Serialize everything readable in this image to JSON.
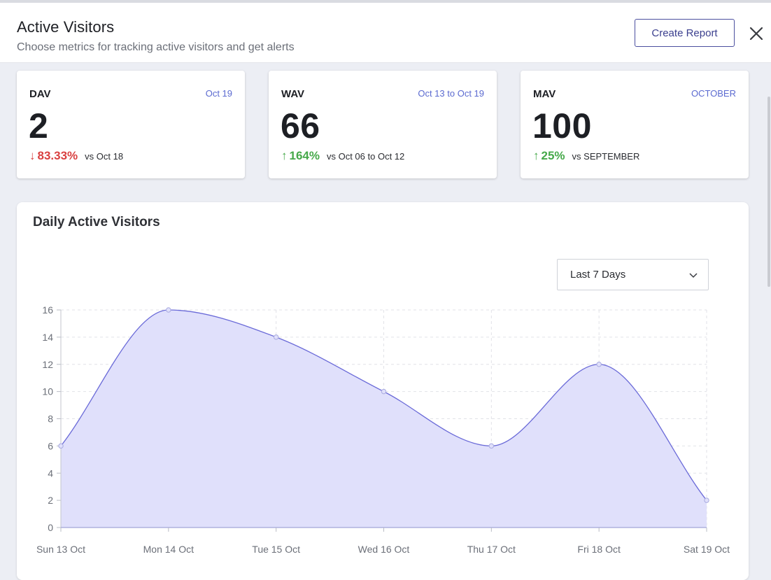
{
  "header": {
    "title": "Active Visitors",
    "subtitle": "Choose metrics for tracking active visitors and get alerts",
    "create_report_label": "Create Report"
  },
  "cards": [
    {
      "label": "DAV",
      "period": "Oct 19",
      "value": "2",
      "direction": "down",
      "delta": "83.33%",
      "vs": "vs Oct 18"
    },
    {
      "label": "WAV",
      "period": "Oct 13 to Oct 19",
      "value": "66",
      "direction": "up",
      "delta": "164%",
      "vs": "vs Oct 06 to Oct 12"
    },
    {
      "label": "MAV",
      "period": "OCTOBER",
      "value": "100",
      "direction": "up",
      "delta": "25%",
      "vs": "vs SEPTEMBER"
    }
  ],
  "chart_panel": {
    "title": "Daily Active Visitors",
    "range_select": {
      "value": "Last 7 Days"
    }
  },
  "colors": {
    "accent": "#3b3f8e",
    "period": "#5b6ad0",
    "down": "#d94141",
    "up": "#46a94a",
    "area_fill": "#e0e0fb",
    "line": "#6a6ad8"
  },
  "icons": {
    "close": "close-icon",
    "chevron": "chevron-down-icon",
    "down_arrow": "arrow-down-icon",
    "up_arrow": "arrow-up-icon"
  },
  "chart_data": {
    "type": "area",
    "title": "Daily Active Visitors",
    "categories": [
      "Sun 13 Oct",
      "Mon 14 Oct",
      "Tue 15 Oct",
      "Wed 16 Oct",
      "Thu 17 Oct",
      "Fri 18 Oct",
      "Sat 19 Oct"
    ],
    "series": [
      {
        "values": [
          6,
          16,
          14,
          10,
          6,
          12,
          2
        ]
      }
    ],
    "ylim": [
      0,
      16
    ],
    "yticks": [
      "0",
      "2",
      "4",
      "6",
      "8",
      "10",
      "12",
      "14",
      "16"
    ],
    "grid": true,
    "legend": "none"
  }
}
